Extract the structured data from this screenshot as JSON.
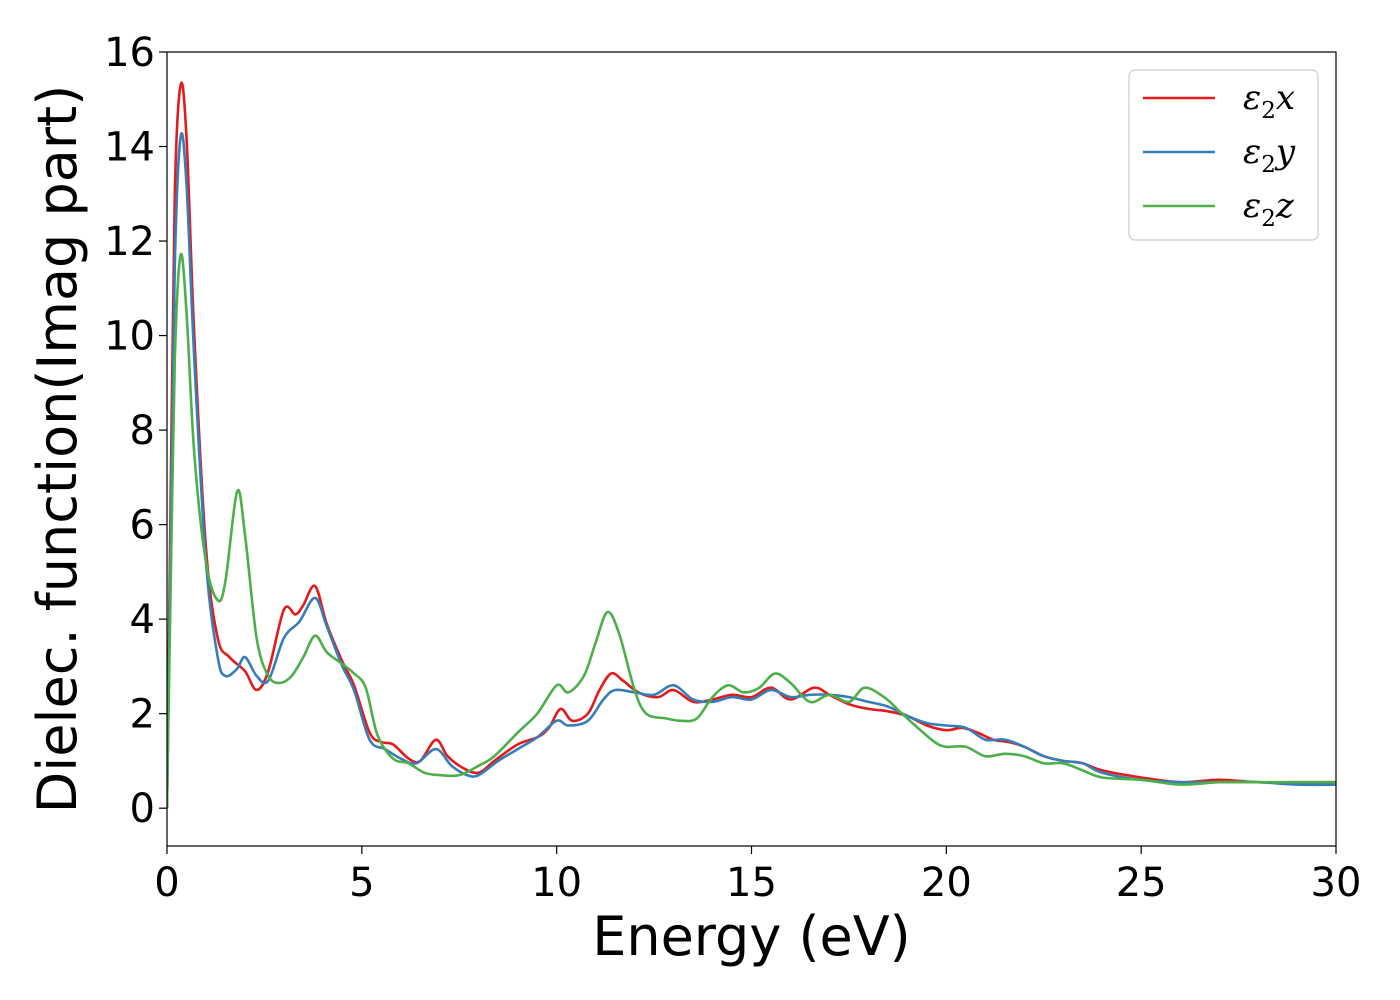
{
  "chart_data": {
    "type": "line",
    "title": "",
    "xlabel": "Energy (eV)",
    "ylabel": "Dielec. function(Imag part)",
    "xlim": [
      0,
      30
    ],
    "ylim": [
      -0.8,
      16
    ],
    "xticks": [
      0,
      5,
      10,
      15,
      20,
      25,
      30
    ],
    "yticks": [
      0,
      2,
      4,
      6,
      8,
      10,
      12,
      14,
      16
    ],
    "grid": false,
    "legend_position": "top-right",
    "series": [
      {
        "name": "ε₂x",
        "legend_base": "ε",
        "legend_sub": "2",
        "legend_suffix": "x",
        "color": "#e41a1c",
        "points": [
          [
            0,
            0
          ],
          [
            0.1,
            7
          ],
          [
            0.2,
            13
          ],
          [
            0.35,
            15.3
          ],
          [
            0.5,
            14.2
          ],
          [
            0.7,
            10
          ],
          [
            1,
            5.5
          ],
          [
            1.3,
            3.6
          ],
          [
            1.6,
            3.2
          ],
          [
            2,
            2.9
          ],
          [
            2.3,
            2.5
          ],
          [
            2.6,
            2.9
          ],
          [
            3,
            4.2
          ],
          [
            3.3,
            4.1
          ],
          [
            3.5,
            4.3
          ],
          [
            3.8,
            4.7
          ],
          [
            4.1,
            3.9
          ],
          [
            4.5,
            3.1
          ],
          [
            4.8,
            2.6
          ],
          [
            5.2,
            1.6
          ],
          [
            5.5,
            1.4
          ],
          [
            5.8,
            1.35
          ],
          [
            6.2,
            1.05
          ],
          [
            6.5,
            1.0
          ],
          [
            6.9,
            1.45
          ],
          [
            7.2,
            1.1
          ],
          [
            7.6,
            0.85
          ],
          [
            8,
            0.75
          ],
          [
            8.4,
            1.0
          ],
          [
            9,
            1.35
          ],
          [
            9.5,
            1.5
          ],
          [
            9.8,
            1.7
          ],
          [
            10.1,
            2.1
          ],
          [
            10.4,
            1.85
          ],
          [
            10.8,
            2.0
          ],
          [
            11.1,
            2.5
          ],
          [
            11.4,
            2.85
          ],
          [
            11.7,
            2.7
          ],
          [
            12.1,
            2.45
          ],
          [
            12.6,
            2.35
          ],
          [
            13,
            2.5
          ],
          [
            13.5,
            2.25
          ],
          [
            14,
            2.3
          ],
          [
            14.5,
            2.4
          ],
          [
            15,
            2.35
          ],
          [
            15.5,
            2.55
          ],
          [
            16,
            2.3
          ],
          [
            16.6,
            2.55
          ],
          [
            17,
            2.4
          ],
          [
            17.5,
            2.2
          ],
          [
            18,
            2.1
          ],
          [
            18.5,
            2.05
          ],
          [
            19,
            1.95
          ],
          [
            19.5,
            1.75
          ],
          [
            20,
            1.65
          ],
          [
            20.4,
            1.7
          ],
          [
            20.8,
            1.6
          ],
          [
            21.2,
            1.45
          ],
          [
            21.6,
            1.4
          ],
          [
            22,
            1.3
          ],
          [
            22.5,
            1.1
          ],
          [
            23,
            1.0
          ],
          [
            23.5,
            0.95
          ],
          [
            24,
            0.8
          ],
          [
            25,
            0.65
          ],
          [
            26,
            0.55
          ],
          [
            27,
            0.6
          ],
          [
            28,
            0.55
          ],
          [
            29,
            0.55
          ],
          [
            30,
            0.55
          ]
        ]
      },
      {
        "name": "ε₂y",
        "legend_base": "ε",
        "legend_sub": "2",
        "legend_suffix": "y",
        "color": "#377eb8",
        "points": [
          [
            0,
            0
          ],
          [
            0.1,
            6
          ],
          [
            0.2,
            11.5
          ],
          [
            0.35,
            14.2
          ],
          [
            0.5,
            13.2
          ],
          [
            0.7,
            9.5
          ],
          [
            1,
            5.2
          ],
          [
            1.3,
            3.2
          ],
          [
            1.5,
            2.8
          ],
          [
            1.8,
            2.95
          ],
          [
            2,
            3.2
          ],
          [
            2.3,
            2.8
          ],
          [
            2.6,
            2.7
          ],
          [
            3,
            3.6
          ],
          [
            3.4,
            3.95
          ],
          [
            3.8,
            4.45
          ],
          [
            4.1,
            3.85
          ],
          [
            4.5,
            3.0
          ],
          [
            4.8,
            2.5
          ],
          [
            5.2,
            1.45
          ],
          [
            5.6,
            1.25
          ],
          [
            6,
            1.05
          ],
          [
            6.4,
            0.95
          ],
          [
            6.9,
            1.25
          ],
          [
            7.3,
            0.9
          ],
          [
            7.7,
            0.7
          ],
          [
            8,
            0.7
          ],
          [
            8.5,
            1.0
          ],
          [
            9,
            1.25
          ],
          [
            9.5,
            1.5
          ],
          [
            10,
            1.85
          ],
          [
            10.3,
            1.75
          ],
          [
            10.8,
            1.85
          ],
          [
            11.2,
            2.3
          ],
          [
            11.5,
            2.5
          ],
          [
            12,
            2.45
          ],
          [
            12.5,
            2.4
          ],
          [
            13,
            2.6
          ],
          [
            13.5,
            2.3
          ],
          [
            14,
            2.25
          ],
          [
            14.5,
            2.35
          ],
          [
            15,
            2.3
          ],
          [
            15.5,
            2.5
          ],
          [
            16,
            2.35
          ],
          [
            16.5,
            2.4
          ],
          [
            17,
            2.4
          ],
          [
            17.5,
            2.35
          ],
          [
            18,
            2.25
          ],
          [
            18.5,
            2.15
          ],
          [
            19,
            1.95
          ],
          [
            19.5,
            1.8
          ],
          [
            20,
            1.75
          ],
          [
            20.5,
            1.7
          ],
          [
            21,
            1.45
          ],
          [
            21.5,
            1.45
          ],
          [
            22,
            1.3
          ],
          [
            22.5,
            1.1
          ],
          [
            23,
            1.0
          ],
          [
            23.5,
            0.95
          ],
          [
            24,
            0.75
          ],
          [
            25,
            0.6
          ],
          [
            26,
            0.55
          ],
          [
            27,
            0.55
          ],
          [
            28,
            0.55
          ],
          [
            29,
            0.5
          ],
          [
            30,
            0.5
          ]
        ]
      },
      {
        "name": "ε₂z",
        "legend_base": "ε",
        "legend_sub": "2",
        "legend_suffix": "z",
        "color": "#4daf4a",
        "points": [
          [
            0,
            0
          ],
          [
            0.1,
            5
          ],
          [
            0.2,
            9.5
          ],
          [
            0.35,
            11.7
          ],
          [
            0.5,
            10.5
          ],
          [
            0.7,
            7.5
          ],
          [
            1,
            5.2
          ],
          [
            1.3,
            4.4
          ],
          [
            1.5,
            4.8
          ],
          [
            1.8,
            6.7
          ],
          [
            2,
            5.8
          ],
          [
            2.3,
            3.6
          ],
          [
            2.6,
            2.8
          ],
          [
            2.9,
            2.65
          ],
          [
            3.2,
            2.8
          ],
          [
            3.5,
            3.2
          ],
          [
            3.8,
            3.65
          ],
          [
            4.1,
            3.3
          ],
          [
            4.5,
            3.05
          ],
          [
            4.8,
            2.85
          ],
          [
            5.1,
            2.55
          ],
          [
            5.4,
            1.55
          ],
          [
            5.8,
            1.05
          ],
          [
            6.2,
            0.95
          ],
          [
            6.6,
            0.75
          ],
          [
            7,
            0.7
          ],
          [
            7.5,
            0.7
          ],
          [
            8,
            0.9
          ],
          [
            8.4,
            1.1
          ],
          [
            9,
            1.6
          ],
          [
            9.5,
            2.0
          ],
          [
            10,
            2.6
          ],
          [
            10.3,
            2.45
          ],
          [
            10.7,
            2.8
          ],
          [
            11,
            3.5
          ],
          [
            11.3,
            4.15
          ],
          [
            11.6,
            3.7
          ],
          [
            12,
            2.5
          ],
          [
            12.3,
            2.0
          ],
          [
            12.8,
            1.9
          ],
          [
            13.2,
            1.85
          ],
          [
            13.6,
            1.9
          ],
          [
            14,
            2.35
          ],
          [
            14.4,
            2.6
          ],
          [
            14.8,
            2.45
          ],
          [
            15.2,
            2.55
          ],
          [
            15.6,
            2.85
          ],
          [
            16,
            2.65
          ],
          [
            16.5,
            2.25
          ],
          [
            17,
            2.4
          ],
          [
            17.5,
            2.25
          ],
          [
            17.9,
            2.55
          ],
          [
            18.4,
            2.35
          ],
          [
            18.8,
            2.05
          ],
          [
            19.2,
            1.75
          ],
          [
            19.7,
            1.4
          ],
          [
            20,
            1.3
          ],
          [
            20.5,
            1.3
          ],
          [
            21,
            1.1
          ],
          [
            21.5,
            1.15
          ],
          [
            22,
            1.1
          ],
          [
            22.5,
            0.95
          ],
          [
            23,
            0.95
          ],
          [
            23.5,
            0.8
          ],
          [
            24,
            0.65
          ],
          [
            25,
            0.6
          ],
          [
            26,
            0.5
          ],
          [
            27,
            0.55
          ],
          [
            28,
            0.55
          ],
          [
            29,
            0.55
          ],
          [
            30,
            0.55
          ]
        ]
      }
    ]
  }
}
